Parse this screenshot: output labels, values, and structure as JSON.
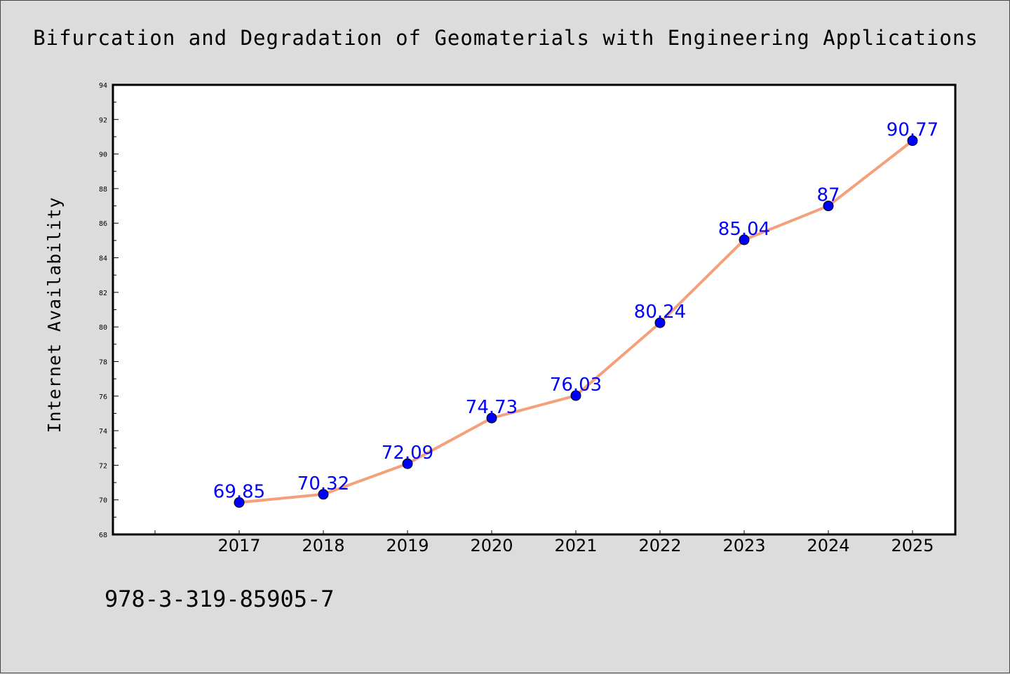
{
  "chart_data": {
    "type": "line",
    "title": "Bifurcation and Degradation of Geomaterials with Engineering Applications",
    "xlabel": "",
    "ylabel": "Internet Availability",
    "categories": [
      "2017",
      "2018",
      "2019",
      "2020",
      "2021",
      "2022",
      "2023",
      "2024",
      "2025"
    ],
    "series": [
      {
        "values": [
          69.85,
          70.32,
          72.09,
          74.73,
          76.03,
          80.24,
          85.04,
          87,
          90.77
        ]
      }
    ],
    "data_labels": [
      "69.85",
      "70.32",
      "72.09",
      "74.73",
      "76.03",
      "80.24",
      "85.04",
      "87",
      "90.77"
    ],
    "ylim": [
      68,
      94
    ],
    "yticks": [
      "68",
      "70",
      "72",
      "74",
      "76",
      "78",
      "80",
      "82",
      "84",
      "86",
      "88",
      "90",
      "92",
      "94"
    ],
    "grid": false,
    "legend": "none",
    "colors": {
      "line": "#f4a07a",
      "marker": "#0000ff",
      "data_label": "#0000ff",
      "background": "#dcdcdc"
    }
  },
  "footer": {
    "isbn": "978-3-319-85905-7"
  }
}
